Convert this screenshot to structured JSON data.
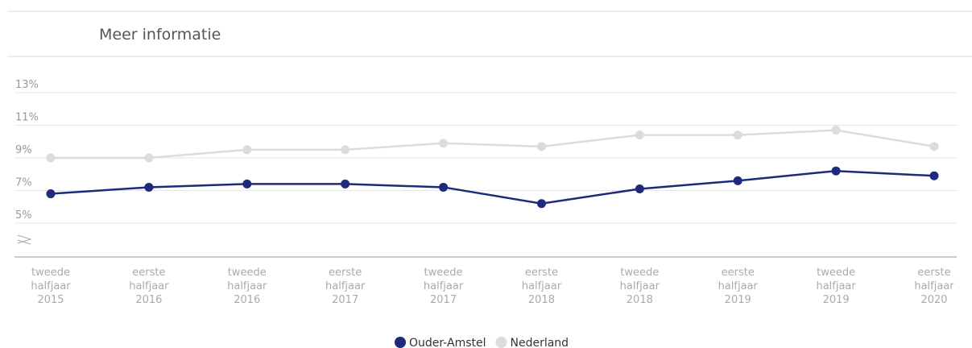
{
  "header": {
    "title": "Meer informatie"
  },
  "chart_data": {
    "type": "line",
    "categories": [
      "tweede halfjaar 2015",
      "eerste halfjaar 2016",
      "tweede halfjaar 2016",
      "eerste halfjaar 2017",
      "tweede halfjaar 2017",
      "eerste halfjaar 2018",
      "tweede halfjaar 2018",
      "eerste halfjaar 2019",
      "tweede halfjaar 2019",
      "eerste halfjaar 2020"
    ],
    "series": [
      {
        "name": "Ouder-Amstel",
        "color": "#1f2a7a",
        "values": [
          6.8,
          7.2,
          7.4,
          7.4,
          7.2,
          6.2,
          7.1,
          7.6,
          8.2,
          7.9
        ]
      },
      {
        "name": "Nederland",
        "color": "#dcdcdc",
        "values": [
          9.0,
          9.0,
          9.5,
          9.5,
          9.9,
          9.7,
          10.4,
          10.4,
          10.7,
          9.7
        ]
      }
    ],
    "ylim": [
      5,
      13
    ],
    "yticks": [
      {
        "value": 5,
        "label": "5%"
      },
      {
        "value": 7,
        "label": "7%"
      },
      {
        "value": 9,
        "label": "9%"
      },
      {
        "value": 11,
        "label": "11%"
      },
      {
        "value": 13,
        "label": "13%"
      }
    ],
    "grid": true,
    "legend": "bottom"
  }
}
